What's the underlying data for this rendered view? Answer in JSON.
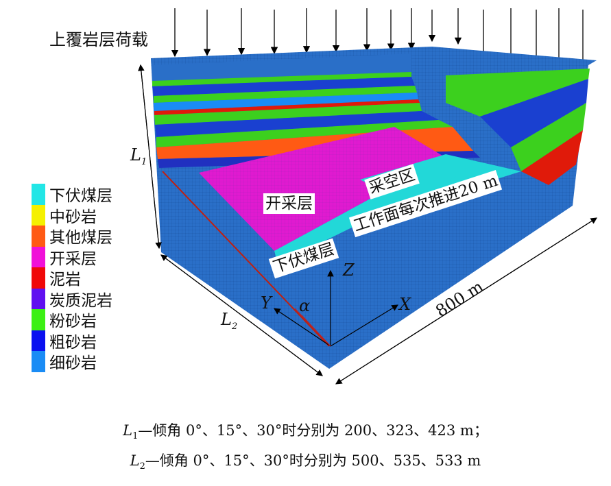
{
  "title_load": "上覆岩层荷载",
  "labels": {
    "mining_layer": "开采层",
    "goaf": "采空区",
    "lower_coal": "下伏煤层",
    "advance": "工作面每次推进20 m",
    "length": "800 m",
    "L1": "L",
    "L1_sub": "1",
    "L2": "L",
    "L2_sub": "2",
    "axis_z": "Z",
    "axis_x": "X",
    "axis_y": "Y",
    "angle": "α"
  },
  "legend": [
    {
      "label": "下伏煤层",
      "color": "#22e6e6"
    },
    {
      "label": "中砂岩",
      "color": "#f5f000"
    },
    {
      "label": "其他煤层",
      "color": "#ff5a14"
    },
    {
      "label": "开采层",
      "color": "#f010d8"
    },
    {
      "label": "泥岩",
      "color": "#f00808"
    },
    {
      "label": "炭质泥岩",
      "color": "#6010f0"
    },
    {
      "label": "粉砂岩",
      "color": "#3cf014"
    },
    {
      "label": "粗砂岩",
      "color": "#0a10f0"
    },
    {
      "label": "细砂岩",
      "color": "#1a8cf5"
    }
  ],
  "caption": {
    "line1_L": "L",
    "line1_sub": "1",
    "line1_text": "—倾角 0°、15°、30°时分别为 200、323、423 m；",
    "line2_L": "L",
    "line2_sub": "2",
    "line2_text": "—倾角 0°、15°、30°时分别为 500、535、533 m"
  }
}
